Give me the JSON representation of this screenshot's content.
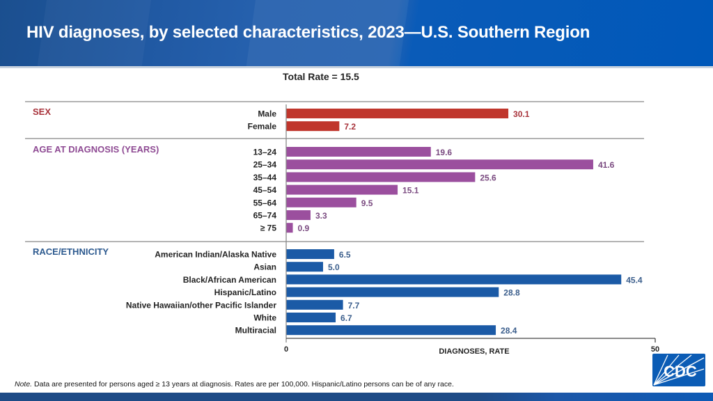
{
  "header": {
    "title": "HIV diagnoses, by selected characteristics, 2023—U.S. Southern Region"
  },
  "chart_data": {
    "type": "bar",
    "orientation": "horizontal",
    "title": "HIV diagnoses, by selected characteristics, 2023—U.S. Southern Region",
    "subtitle": "Total Rate = 15.5",
    "total_rate": 15.5,
    "xlabel": "DIAGNOSES, RATE",
    "ylabel": "",
    "xlim": [
      0,
      50
    ],
    "xticks": [
      "0",
      "50"
    ],
    "grid": false,
    "groups": [
      {
        "name": "SEX",
        "color": "#c0362c",
        "label_color": "#a8323a",
        "value_color": "#a8323a",
        "categories": [
          "Male",
          "Female"
        ],
        "values": [
          30.1,
          7.2
        ],
        "value_labels": [
          "30.1",
          "7.2"
        ]
      },
      {
        "name": "AGE AT DIAGNOSIS (YEARS)",
        "color": "#9b4f9e",
        "label_color": "#8e4a93",
        "value_color": "#7a4a80",
        "categories": [
          "13–24",
          "25–34",
          "35–44",
          "45–54",
          "55–64",
          "65–74",
          "≥ 75"
        ],
        "values": [
          19.6,
          41.6,
          25.6,
          15.1,
          9.5,
          3.3,
          0.9
        ],
        "value_labels": [
          "19.6",
          "41.6",
          "25.6",
          "15.1",
          "9.5",
          "3.3",
          "0.9"
        ]
      },
      {
        "name": "RACE/ETHNICITY",
        "color": "#1b5aa6",
        "label_color": "#2d5a8f",
        "value_color": "#3b5e8c",
        "categories": [
          "American Indian/Alaska Native",
          "Asian",
          "Black/African American",
          "Hispanic/Latino",
          "Native Hawaiian/other Pacific Islander",
          "White",
          "Multiracial"
        ],
        "values": [
          6.5,
          5.0,
          45.4,
          28.8,
          7.7,
          6.7,
          28.4
        ],
        "value_labels": [
          "6.5",
          "5.0",
          "45.4",
          "28.8",
          "7.7",
          "6.7",
          "28.4"
        ]
      }
    ]
  },
  "note": {
    "prefix": "Note.",
    "text": " Data are presented for persons aged ≥ 13 years at diagnosis. Rates are per 100,000. Hispanic/Latino persons can be of any race."
  },
  "logo": {
    "text": "CDC",
    "color": "#0b5cb5"
  }
}
